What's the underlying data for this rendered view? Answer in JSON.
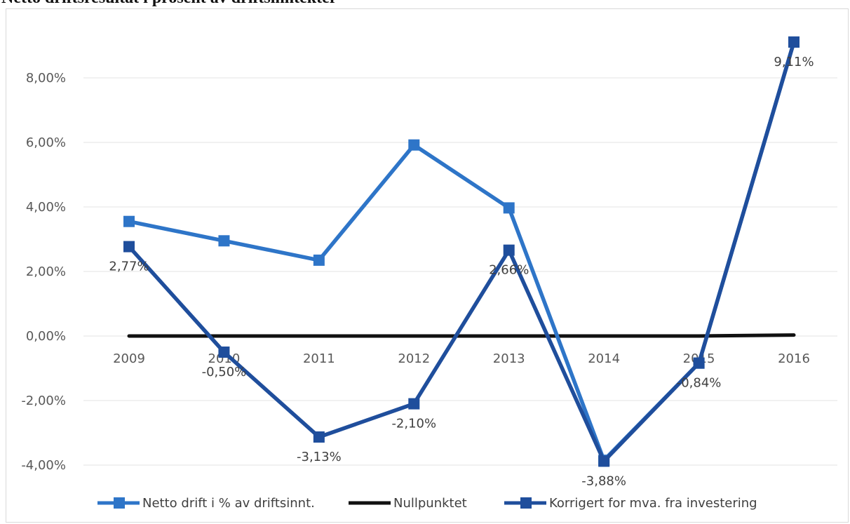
{
  "page": {
    "title": "Netto driftsresultat i prosent av driftsinntekter"
  },
  "chart_data": {
    "type": "line",
    "categories": [
      "2009",
      "2010",
      "2011",
      "2012",
      "2013",
      "2014",
      "2015",
      "2016"
    ],
    "y_ticks": [
      "-4,00%",
      "-2,00%",
      "0,00%",
      "2,00%",
      "4,00%",
      "6,00%",
      "8,00%"
    ],
    "y_tick_values": [
      -4,
      -2,
      0,
      2,
      4,
      6,
      8
    ],
    "ylim": [
      -4.7,
      9.6
    ],
    "grid": true,
    "legend_position": "bottom",
    "series": [
      {
        "name": "Netto drift i % av driftsinnt.",
        "color": "#2e75c8",
        "marker": "square",
        "values": [
          3.55,
          2.95,
          2.35,
          5.92,
          3.97,
          -3.85,
          -0.84,
          9.11
        ],
        "labels": [
          "",
          "",
          "",
          "",
          "",
          "",
          "",
          ""
        ]
      },
      {
        "name": "Nullpunktet",
        "color": "#111111",
        "marker": "none",
        "values": [
          0,
          0,
          0,
          0,
          0,
          0,
          0,
          0.03
        ],
        "labels": [
          "",
          "",
          "",
          "",
          "",
          "",
          "",
          ""
        ]
      },
      {
        "name": "Korrigert for mva. fra investering",
        "color": "#1f4e9c",
        "marker": "square",
        "values": [
          2.77,
          -0.5,
          -3.13,
          -2.1,
          2.66,
          -3.88,
          -0.84,
          9.11
        ],
        "labels": [
          "2,77%",
          "-0,50%",
          "-3,13%",
          "-2,10%",
          "2,66%",
          "-3,88%",
          "-0,84%",
          "9,11%"
        ]
      }
    ]
  }
}
